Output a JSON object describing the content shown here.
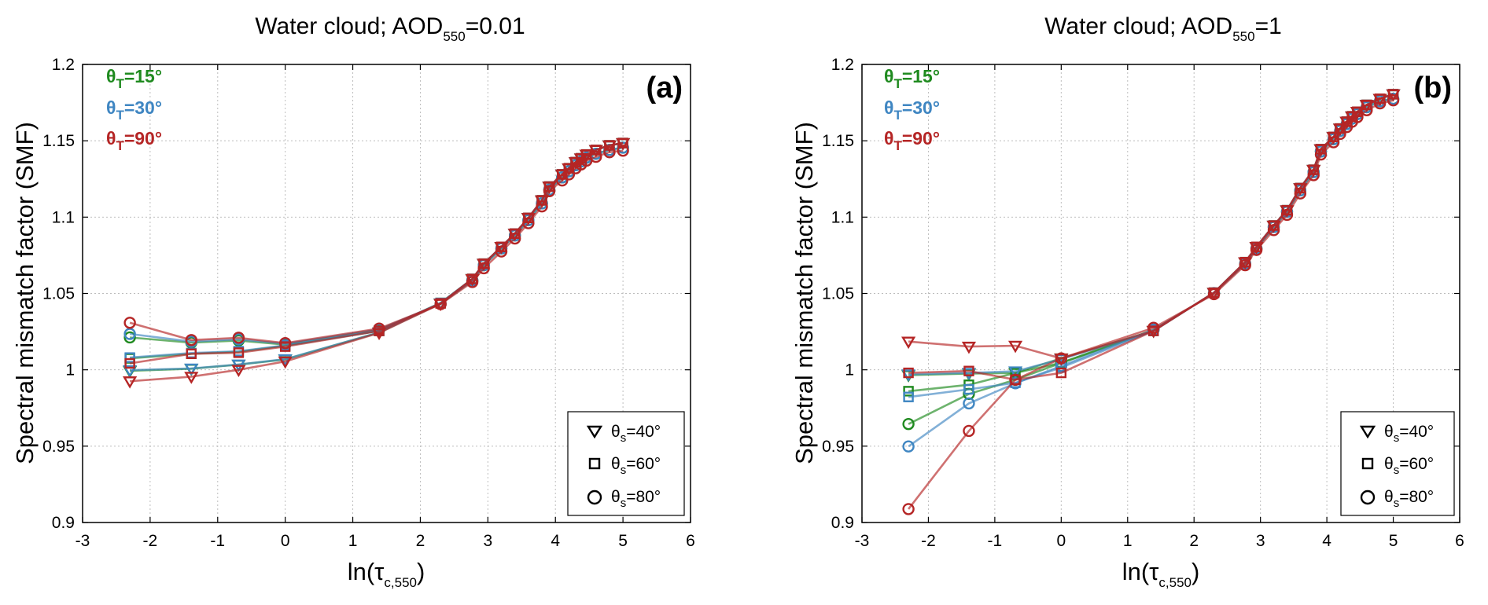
{
  "colors": {
    "15": "#1f8a1f",
    "30": "#3f86c2",
    "90": "#b52525"
  },
  "legend_entries": [
    {
      "marker": "triangle-down",
      "sym": "θ",
      "sub": "s",
      "text": "=40°"
    },
    {
      "marker": "square",
      "sym": "θ",
      "sub": "s",
      "text": "=60°"
    },
    {
      "marker": "circle",
      "sym": "θ",
      "sub": "s",
      "text": "=80°"
    }
  ],
  "theta_labels": [
    {
      "key": "15",
      "sym": "θ",
      "sub": "T",
      "text": "=15°"
    },
    {
      "key": "30",
      "sym": "θ",
      "sub": "T",
      "text": "=30°"
    },
    {
      "key": "90",
      "sym": "θ",
      "sub": "T",
      "text": "=90°"
    }
  ],
  "chart_data": [
    {
      "type": "line",
      "panel_label": "(a)",
      "title": {
        "main": "Water cloud; AOD",
        "sub": "550",
        "suffix": "=0.01"
      },
      "xlabel": {
        "main": "ln(τ",
        "sub": "c,550",
        "suffix": ")"
      },
      "ylabel": "Spectral mismatch factor (SMF)",
      "xlim": [
        -3,
        6
      ],
      "ylim": [
        0.9,
        1.2
      ],
      "xticks": [
        -3,
        -2,
        -1,
        0,
        1,
        2,
        3,
        4,
        5,
        6
      ],
      "yticks": [
        0.9,
        0.95,
        1,
        1.05,
        1.1,
        1.15,
        1.2
      ],
      "xticklabels": [
        "-3",
        "-2",
        "-1",
        "0",
        "1",
        "2",
        "3",
        "4",
        "5",
        "6"
      ],
      "yticklabels": [
        "0.9",
        "0.95",
        "1",
        "1.05",
        "1.1",
        "1.15",
        "1.2"
      ],
      "grid": true,
      "x": [
        -2.3,
        -1.39,
        -0.69,
        0,
        1.39,
        2.3,
        2.77,
        2.94,
        3.2,
        3.4,
        3.6,
        3.8,
        3.91,
        4.1,
        4.2,
        4.3,
        4.38,
        4.46,
        4.6,
        4.8,
        5.0
      ],
      "series": [
        {
          "name": "θT=15° θs=40°",
          "color_key": "15",
          "marker": "triangle-down",
          "values": [
            0.9993,
            1.0007,
            1.0034,
            1.0068,
            1.0245,
            1.0435,
            1.0595,
            1.0695,
            1.0805,
            1.0892,
            1.0995,
            1.111,
            1.12,
            1.128,
            1.132,
            1.136,
            1.1385,
            1.141,
            1.144,
            1.147,
            1.1485
          ]
        },
        {
          "name": "θT=15° θs=60°",
          "color_key": "15",
          "marker": "square",
          "values": [
            1.0075,
            1.0105,
            1.0118,
            1.0158,
            1.0255,
            1.0438,
            1.0595,
            1.0695,
            1.0805,
            1.0892,
            1.0995,
            1.111,
            1.12,
            1.128,
            1.132,
            1.136,
            1.1385,
            1.141,
            1.144,
            1.147,
            1.1485
          ]
        },
        {
          "name": "θT=15° θs=80°",
          "color_key": "15",
          "marker": "circle",
          "values": [
            1.0212,
            1.0178,
            1.0192,
            1.0165,
            1.0262,
            1.0432,
            1.0585,
            1.0685,
            1.0795,
            1.088,
            1.098,
            1.109,
            1.118,
            1.126,
            1.13,
            1.134,
            1.1365,
            1.139,
            1.1415,
            1.144,
            1.1455
          ]
        },
        {
          "name": "θT=30° θs=40°",
          "color_key": "30",
          "marker": "triangle-down",
          "values": [
            0.9998,
            1.0009,
            1.0035,
            1.007,
            1.0245,
            1.0435,
            1.0595,
            1.0695,
            1.0805,
            1.0892,
            1.0995,
            1.111,
            1.12,
            1.128,
            1.132,
            1.136,
            1.1385,
            1.141,
            1.144,
            1.147,
            1.1485
          ]
        },
        {
          "name": "θT=30° θs=60°",
          "color_key": "30",
          "marker": "square",
          "values": [
            1.008,
            1.011,
            1.0122,
            1.016,
            1.0255,
            1.0438,
            1.0595,
            1.0695,
            1.0805,
            1.0892,
            1.0995,
            1.111,
            1.12,
            1.128,
            1.132,
            1.136,
            1.1385,
            1.141,
            1.144,
            1.147,
            1.1485
          ]
        },
        {
          "name": "θT=30° θs=80°",
          "color_key": "30",
          "marker": "circle",
          "values": [
            1.0235,
            1.0185,
            1.02,
            1.017,
            1.0265,
            1.0432,
            1.0585,
            1.0685,
            1.0795,
            1.088,
            1.098,
            1.109,
            1.118,
            1.126,
            1.13,
            1.134,
            1.1365,
            1.139,
            1.1415,
            1.144,
            1.1455
          ]
        },
        {
          "name": "θT=90° θs=40°",
          "color_key": "90",
          "marker": "triangle-down",
          "values": [
            0.9925,
            0.9955,
            1.0,
            1.0055,
            1.0242,
            1.0432,
            1.0595,
            1.0695,
            1.0805,
            1.0892,
            1.0995,
            1.111,
            1.12,
            1.128,
            1.132,
            1.136,
            1.1385,
            1.141,
            1.144,
            1.147,
            1.1485
          ]
        },
        {
          "name": "θT=90° θs=60°",
          "color_key": "90",
          "marker": "square",
          "values": [
            1.0042,
            1.0105,
            1.0112,
            1.0152,
            1.0255,
            1.0435,
            1.0595,
            1.0695,
            1.0805,
            1.0892,
            1.0995,
            1.111,
            1.12,
            1.128,
            1.132,
            1.136,
            1.1385,
            1.141,
            1.144,
            1.147,
            1.1485
          ]
        },
        {
          "name": "θT=90° θs=80°",
          "color_key": "90",
          "marker": "circle",
          "values": [
            1.0308,
            1.0195,
            1.021,
            1.0175,
            1.027,
            1.043,
            1.0575,
            1.0665,
            1.0775,
            1.086,
            1.096,
            1.107,
            1.117,
            1.124,
            1.128,
            1.132,
            1.1345,
            1.137,
            1.1395,
            1.1425,
            1.1435
          ]
        }
      ]
    },
    {
      "type": "line",
      "panel_label": "(b)",
      "title": {
        "main": "Water cloud; AOD",
        "sub": "550",
        "suffix": "=1"
      },
      "xlabel": {
        "main": "ln(τ",
        "sub": "c,550",
        "suffix": ")"
      },
      "ylabel": "Spectral mismatch factor (SMF)",
      "xlim": [
        -3,
        6
      ],
      "ylim": [
        0.9,
        1.2
      ],
      "xticks": [
        -3,
        -2,
        -1,
        0,
        1,
        2,
        3,
        4,
        5,
        6
      ],
      "yticks": [
        0.9,
        0.95,
        1,
        1.05,
        1.1,
        1.15,
        1.2
      ],
      "xticklabels": [
        "-3",
        "-2",
        "-1",
        "0",
        "1",
        "2",
        "3",
        "4",
        "5",
        "6"
      ],
      "yticklabels": [
        "0.9",
        "0.95",
        "1",
        "1.05",
        "1.1",
        "1.15",
        "1.2"
      ],
      "grid": true,
      "x": [
        -2.3,
        -1.39,
        -0.69,
        0,
        1.39,
        2.3,
        2.77,
        2.94,
        3.2,
        3.4,
        3.6,
        3.8,
        3.91,
        4.1,
        4.2,
        4.3,
        4.38,
        4.46,
        4.6,
        4.8,
        5.0
      ],
      "series": [
        {
          "name": "θT=15° θs=40°",
          "color_key": "15",
          "marker": "triangle-down",
          "values": [
            0.9965,
            0.9975,
            0.998,
            1.0075,
            1.0255,
            1.0505,
            1.0705,
            1.0805,
            1.0945,
            1.1045,
            1.119,
            1.131,
            1.1445,
            1.1525,
            1.158,
            1.1625,
            1.166,
            1.169,
            1.1735,
            1.1775,
            1.1805
          ]
        },
        {
          "name": "θT=15° θs=60°",
          "color_key": "15",
          "marker": "square",
          "values": [
            0.986,
            0.9902,
            0.998,
            1.0045,
            1.0255,
            1.0505,
            1.0705,
            1.0805,
            1.0945,
            1.1045,
            1.119,
            1.131,
            1.1445,
            1.1525,
            1.158,
            1.1625,
            1.166,
            1.169,
            1.1735,
            1.1775,
            1.1805
          ]
        },
        {
          "name": "θT=15° θs=80°",
          "color_key": "15",
          "marker": "circle",
          "values": [
            0.9645,
            0.9842,
            0.9935,
            1.0045,
            1.0262,
            1.0502,
            1.0695,
            1.0795,
            1.0935,
            1.1035,
            1.1175,
            1.1295,
            1.143,
            1.151,
            1.1565,
            1.161,
            1.1645,
            1.1675,
            1.172,
            1.176,
            1.1775
          ]
        },
        {
          "name": "θT=30° θs=40°",
          "color_key": "30",
          "marker": "triangle-down",
          "values": [
            0.997,
            0.998,
            0.999,
            1.007,
            1.0255,
            1.0505,
            1.0705,
            1.0805,
            1.0945,
            1.1045,
            1.119,
            1.131,
            1.1445,
            1.1525,
            1.158,
            1.1625,
            1.166,
            1.169,
            1.1735,
            1.1775,
            1.1805
          ]
        },
        {
          "name": "θT=30° θs=60°",
          "color_key": "30",
          "marker": "square",
          "values": [
            0.9822,
            0.9872,
            0.9915,
            1.0015,
            1.0255,
            1.0505,
            1.0705,
            1.0805,
            1.0945,
            1.1045,
            1.119,
            1.131,
            1.1445,
            1.1525,
            1.158,
            1.1625,
            1.166,
            1.169,
            1.1735,
            1.1775,
            1.1805
          ]
        },
        {
          "name": "θT=30° θs=80°",
          "color_key": "30",
          "marker": "circle",
          "values": [
            0.9498,
            0.978,
            0.9912,
            1.0025,
            1.0262,
            1.0502,
            1.0695,
            1.0795,
            1.0935,
            1.1035,
            1.1175,
            1.1295,
            1.143,
            1.151,
            1.1565,
            1.161,
            1.1645,
            1.1675,
            1.172,
            1.176,
            1.1775
          ]
        },
        {
          "name": "θT=90° θs=40°",
          "color_key": "90",
          "marker": "triangle-down",
          "values": [
            1.0185,
            1.0152,
            1.0158,
            1.0075,
            1.0255,
            1.0505,
            1.0705,
            1.0805,
            1.0945,
            1.1045,
            1.119,
            1.131,
            1.1445,
            1.1525,
            1.158,
            1.1625,
            1.166,
            1.169,
            1.1735,
            1.1775,
            1.1805
          ]
        },
        {
          "name": "θT=90° θs=60°",
          "color_key": "90",
          "marker": "square",
          "values": [
            0.998,
            0.9992,
            0.9935,
            0.998,
            1.0255,
            1.0505,
            1.0705,
            1.0805,
            1.0945,
            1.1045,
            1.119,
            1.131,
            1.1445,
            1.1525,
            1.158,
            1.1625,
            1.166,
            1.169,
            1.1735,
            1.1775,
            1.1805
          ]
        },
        {
          "name": "θT=90° θs=80°",
          "color_key": "90",
          "marker": "circle",
          "values": [
            0.9088,
            0.96,
            0.9935,
            1.0075,
            1.0275,
            1.0495,
            1.0685,
            1.0785,
            1.0915,
            1.1015,
            1.1155,
            1.1275,
            1.141,
            1.149,
            1.1545,
            1.159,
            1.1625,
            1.1655,
            1.17,
            1.1745,
            1.1765
          ]
        }
      ]
    }
  ]
}
